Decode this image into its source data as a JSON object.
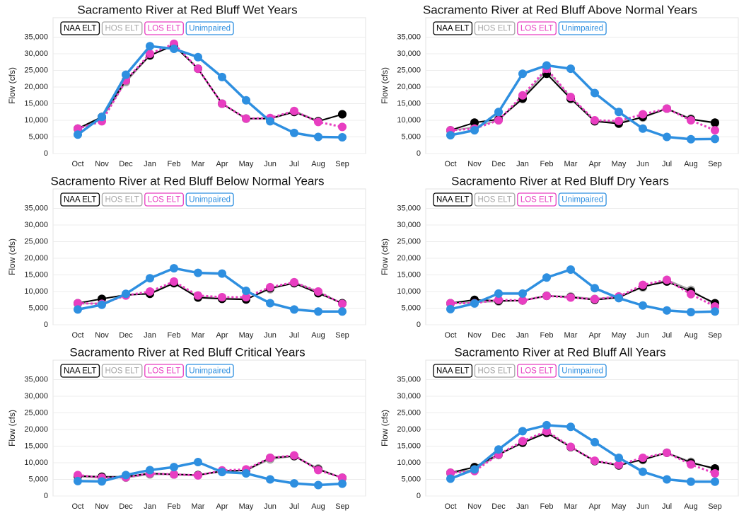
{
  "chart_data": [
    {
      "type": "line",
      "title": "Sacramento River at Red Bluff Wet Years",
      "ylabel": "Flow (cfs)",
      "categories": [
        "Oct",
        "Nov",
        "Dec",
        "Jan",
        "Feb",
        "Mar",
        "Apr",
        "May",
        "Jun",
        "Jul",
        "Aug",
        "Sep"
      ],
      "ylim": [
        0,
        35000
      ],
      "yticks": [
        0,
        {
          "value": 5000,
          "label": "5,000"
        },
        {
          "value": 10000,
          "label": "10,000"
        },
        {
          "value": 15000,
          "label": "15,000"
        },
        {
          "value": 20000,
          "label": "20,000"
        },
        {
          "value": 25000,
          "label": "25,000"
        },
        {
          "value": 30000,
          "label": "30,000"
        },
        {
          "value": 35000,
          "label": "35,000"
        }
      ],
      "grid": true,
      "legend": "top-left",
      "series": [
        {
          "name": "NAA ELT",
          "color": "#000000",
          "values": [
            7500,
            11000,
            22000,
            29500,
            32500,
            25500,
            15000,
            10500,
            10500,
            12500,
            9700,
            11800
          ]
        },
        {
          "name": "HOS ELT",
          "color": "#a6a6a6",
          "values": [
            7300,
            10500,
            21500,
            29500,
            32800,
            25500,
            15000,
            10500,
            10500,
            12800,
            9800,
            11800
          ]
        },
        {
          "name": "LOS ELT",
          "color": "#e83ec1",
          "dashed": true,
          "values": [
            7500,
            9700,
            22000,
            30000,
            33000,
            25500,
            15000,
            10500,
            10700,
            12800,
            9500,
            8000
          ]
        },
        {
          "name": "Unimpaired",
          "color": "#2e8fe0",
          "values": [
            5700,
            11000,
            23700,
            32300,
            31500,
            29000,
            23000,
            16000,
            9700,
            6200,
            5000,
            4900
          ]
        }
      ]
    },
    {
      "type": "line",
      "title": "Sacramento River at Red Bluff Above Normal Years",
      "ylabel": "Flow (cfs)",
      "categories": [
        "Oct",
        "Nov",
        "Dec",
        "Jan",
        "Feb",
        "Mar",
        "Apr",
        "May",
        "Jun",
        "Jul",
        "Aug",
        "Sep"
      ],
      "ylim": [
        0,
        35000
      ],
      "yticks": [
        0,
        {
          "value": 5000,
          "label": "5,000"
        },
        {
          "value": 10000,
          "label": "10,000"
        },
        {
          "value": 15000,
          "label": "15,000"
        },
        {
          "value": 20000,
          "label": "20,000"
        },
        {
          "value": 25000,
          "label": "25,000"
        },
        {
          "value": 30000,
          "label": "30,000"
        },
        {
          "value": 35000,
          "label": "35,000"
        }
      ],
      "grid": true,
      "legend": "top-left",
      "series": [
        {
          "name": "NAA ELT",
          "color": "#000000",
          "values": [
            7000,
            9300,
            10300,
            16500,
            24000,
            16500,
            9700,
            9000,
            11000,
            13500,
            10300,
            9300
          ]
        },
        {
          "name": "HOS ELT",
          "color": "#a6a6a6",
          "values": [
            6800,
            8000,
            10000,
            17000,
            25000,
            17000,
            9800,
            9500,
            10800,
            13500,
            10500,
            9000
          ]
        },
        {
          "name": "LOS ELT",
          "color": "#e83ec1",
          "dashed": true,
          "values": [
            7000,
            7500,
            10000,
            17500,
            25500,
            17000,
            10000,
            9800,
            11800,
            13500,
            10000,
            7000
          ]
        },
        {
          "name": "Unimpaired",
          "color": "#2e8fe0",
          "values": [
            5500,
            7000,
            12500,
            24000,
            26500,
            25500,
            18200,
            12500,
            7500,
            5000,
            4300,
            4400
          ]
        }
      ]
    },
    {
      "type": "line",
      "title": "Sacramento River at Red Bluff Below Normal Years",
      "ylabel": "Flow (cfs)",
      "categories": [
        "Oct",
        "Nov",
        "Dec",
        "Jan",
        "Feb",
        "Mar",
        "Apr",
        "May",
        "Jun",
        "Jul",
        "Aug",
        "Sep"
      ],
      "ylim": [
        0,
        35000
      ],
      "yticks": [
        0,
        {
          "value": 5000,
          "label": "5,000"
        },
        {
          "value": 10000,
          "label": "10,000"
        },
        {
          "value": 15000,
          "label": "15,000"
        },
        {
          "value": 20000,
          "label": "20,000"
        },
        {
          "value": 25000,
          "label": "25,000"
        },
        {
          "value": 30000,
          "label": "30,000"
        },
        {
          "value": 35000,
          "label": "35,000"
        }
      ],
      "grid": true,
      "legend": "top-left",
      "series": [
        {
          "name": "NAA ELT",
          "color": "#000000",
          "values": [
            6500,
            7800,
            9000,
            9300,
            12500,
            8200,
            7800,
            7600,
            11000,
            12500,
            9500,
            6500
          ]
        },
        {
          "name": "HOS ELT",
          "color": "#a6a6a6",
          "values": [
            6300,
            6500,
            8800,
            9500,
            12700,
            8500,
            8000,
            7800,
            10700,
            12800,
            10000,
            6300
          ]
        },
        {
          "name": "LOS ELT",
          "color": "#e83ec1",
          "dashed": true,
          "values": [
            6500,
            6300,
            8800,
            10000,
            13000,
            8800,
            8300,
            8300,
            11300,
            12800,
            10000,
            6300
          ]
        },
        {
          "name": "Unimpaired",
          "color": "#2e8fe0",
          "values": [
            4600,
            6000,
            9300,
            14000,
            17000,
            15600,
            15400,
            10200,
            6500,
            4600,
            4000,
            4000
          ]
        }
      ]
    },
    {
      "type": "line",
      "title": "Sacramento River at Red Bluff Dry Years",
      "ylabel": "Flow (cfs)",
      "categories": [
        "Oct",
        "Nov",
        "Dec",
        "Jan",
        "Feb",
        "Mar",
        "Apr",
        "May",
        "Jun",
        "Jul",
        "Aug",
        "Sep"
      ],
      "ylim": [
        0,
        35000
      ],
      "yticks": [
        0,
        {
          "value": 5000,
          "label": "5,000"
        },
        {
          "value": 10000,
          "label": "10,000"
        },
        {
          "value": 15000,
          "label": "15,000"
        },
        {
          "value": 20000,
          "label": "20,000"
        },
        {
          "value": 25000,
          "label": "25,000"
        },
        {
          "value": 30000,
          "label": "30,000"
        },
        {
          "value": 35000,
          "label": "35,000"
        }
      ],
      "grid": true,
      "legend": "top-left",
      "series": [
        {
          "name": "NAA ELT",
          "color": "#000000",
          "values": [
            6500,
            7500,
            7200,
            7300,
            8700,
            8300,
            7500,
            8200,
            11500,
            13000,
            10000,
            6500
          ]
        },
        {
          "name": "HOS ELT",
          "color": "#a6a6a6",
          "values": [
            6300,
            6800,
            7000,
            7300,
            8700,
            8500,
            7800,
            8500,
            11200,
            13500,
            10500,
            6000
          ]
        },
        {
          "name": "LOS ELT",
          "color": "#e83ec1",
          "dashed": true,
          "values": [
            6500,
            6500,
            7500,
            7300,
            8700,
            8200,
            7700,
            8500,
            12000,
            13500,
            9200,
            5500
          ]
        },
        {
          "name": "Unimpaired",
          "color": "#2e8fe0",
          "values": [
            4700,
            6400,
            9400,
            9400,
            14200,
            16600,
            11000,
            8000,
            5800,
            4300,
            3800,
            4000
          ]
        }
      ]
    },
    {
      "type": "line",
      "title": "Sacramento River at Red Bluff Critical Years",
      "ylabel": "Flow (cfs)",
      "categories": [
        "Oct",
        "Nov",
        "Dec",
        "Jan",
        "Feb",
        "Mar",
        "Apr",
        "May",
        "Jun",
        "Jul",
        "Aug",
        "Sep"
      ],
      "ylim": [
        0,
        35000
      ],
      "yticks": [
        0,
        {
          "value": 5000,
          "label": "5,000"
        },
        {
          "value": 10000,
          "label": "10,000"
        },
        {
          "value": 15000,
          "label": "15,000"
        },
        {
          "value": 20000,
          "label": "20,000"
        },
        {
          "value": 25000,
          "label": "25,000"
        },
        {
          "value": 30000,
          "label": "30,000"
        },
        {
          "value": 35000,
          "label": "35,000"
        }
      ],
      "grid": true,
      "legend": "top-left",
      "series": [
        {
          "name": "NAA ELT",
          "color": "#000000",
          "values": [
            6000,
            5800,
            5800,
            6800,
            6500,
            6300,
            7500,
            7700,
            11500,
            12000,
            8000,
            5500
          ]
        },
        {
          "name": "HOS ELT",
          "color": "#a6a6a6",
          "values": [
            5800,
            5500,
            5500,
            6500,
            6500,
            6300,
            7300,
            7800,
            11000,
            12000,
            8300,
            5300
          ]
        },
        {
          "name": "LOS ELT",
          "color": "#e83ec1",
          "dashed": true,
          "values": [
            6300,
            5500,
            5600,
            6800,
            6500,
            6200,
            7700,
            8000,
            11500,
            12200,
            7800,
            5500
          ]
        },
        {
          "name": "Unimpaired",
          "color": "#2e8fe0",
          "values": [
            4500,
            4400,
            6300,
            7800,
            8700,
            10200,
            7200,
            6800,
            5000,
            3800,
            3300,
            3700
          ]
        }
      ]
    },
    {
      "type": "line",
      "title": "Sacramento River at Red Bluff All Years",
      "ylabel": "Flow (cfs)",
      "categories": [
        "Oct",
        "Nov",
        "Dec",
        "Jan",
        "Feb",
        "Mar",
        "Apr",
        "May",
        "Jun",
        "Jul",
        "Aug",
        "Sep"
      ],
      "ylim": [
        0,
        35000
      ],
      "yticks": [
        0,
        {
          "value": 5000,
          "label": "5,000"
        },
        {
          "value": 10000,
          "label": "10,000"
        },
        {
          "value": 15000,
          "label": "15,000"
        },
        {
          "value": 20000,
          "label": "20,000"
        },
        {
          "value": 25000,
          "label": "25,000"
        },
        {
          "value": 30000,
          "label": "30,000"
        },
        {
          "value": 35000,
          "label": "35,000"
        }
      ],
      "grid": true,
      "legend": "top-left",
      "series": [
        {
          "name": "NAA ELT",
          "color": "#000000",
          "values": [
            7000,
            8700,
            12500,
            16000,
            19000,
            14700,
            10500,
            9200,
            11000,
            13000,
            10000,
            8300
          ]
        },
        {
          "name": "HOS ELT",
          "color": "#a6a6a6",
          "values": [
            6800,
            8000,
            12300,
            16200,
            19300,
            14800,
            10500,
            9400,
            10800,
            13000,
            10300,
            8000
          ]
        },
        {
          "name": "LOS ELT",
          "color": "#e83ec1",
          "dashed": true,
          "values": [
            7000,
            7500,
            12500,
            16500,
            19500,
            14800,
            10600,
            9400,
            11500,
            13000,
            9500,
            6800
          ]
        },
        {
          "name": "Unimpaired",
          "color": "#2e8fe0",
          "values": [
            5200,
            8000,
            14000,
            19500,
            21300,
            20800,
            16200,
            11500,
            7300,
            5000,
            4300,
            4300
          ]
        }
      ]
    }
  ]
}
